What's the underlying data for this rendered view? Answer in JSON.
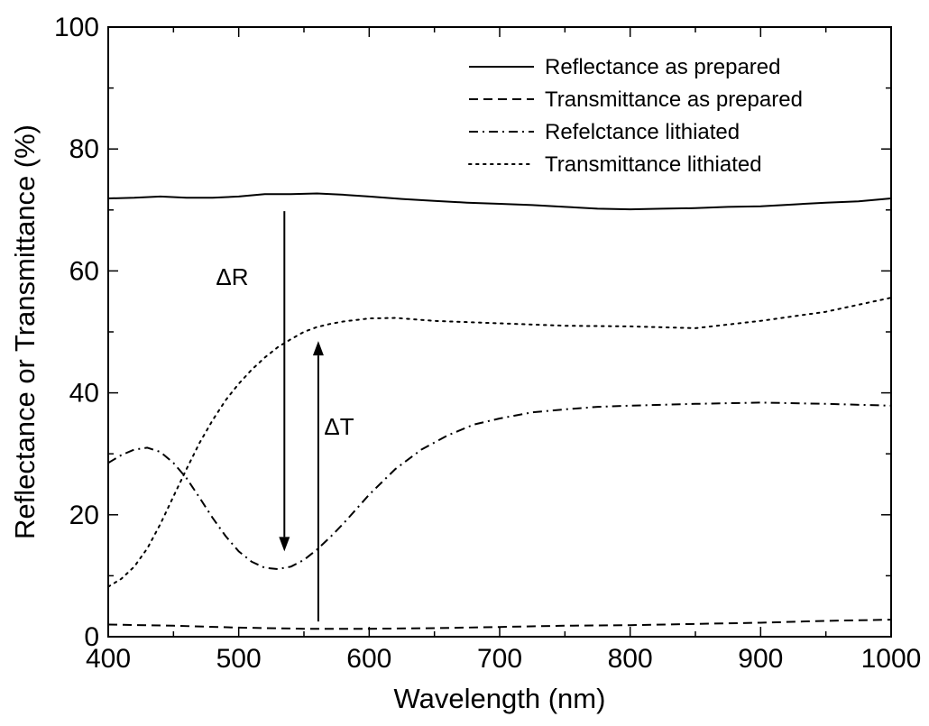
{
  "chart_data": {
    "type": "line",
    "title": "",
    "xlabel": "Wavelength (nm)",
    "ylabel": "Reflectance or Transmittance (%)",
    "xlim": [
      400,
      1000
    ],
    "ylim": [
      0,
      100
    ],
    "xticks": [
      400,
      500,
      600,
      700,
      800,
      900,
      1000
    ],
    "yticks": [
      0,
      20,
      40,
      60,
      80,
      100
    ],
    "grid": false,
    "legend_position": "top-right",
    "series": [
      {
        "name": "Reflectance as prepared",
        "style": "solid",
        "color": "#000000",
        "x": [
          400,
          420,
          440,
          460,
          480,
          500,
          520,
          540,
          560,
          580,
          600,
          625,
          650,
          675,
          700,
          725,
          750,
          775,
          800,
          825,
          850,
          875,
          900,
          925,
          950,
          975,
          1000
        ],
        "y": [
          71.9,
          72.0,
          72.2,
          72.0,
          72.0,
          72.2,
          72.6,
          72.6,
          72.7,
          72.5,
          72.2,
          71.8,
          71.5,
          71.2,
          71.0,
          70.8,
          70.5,
          70.2,
          70.1,
          70.2,
          70.3,
          70.5,
          70.6,
          70.9,
          71.2,
          71.4,
          71.9
        ]
      },
      {
        "name": "Transmittance as prepared",
        "style": "dashed",
        "color": "#000000",
        "x": [
          400,
          450,
          500,
          550,
          600,
          650,
          700,
          750,
          800,
          850,
          900,
          950,
          1000
        ],
        "y": [
          2.0,
          1.8,
          1.5,
          1.3,
          1.3,
          1.4,
          1.6,
          1.8,
          1.9,
          2.1,
          2.3,
          2.6,
          2.8
        ]
      },
      {
        "name": "Refelctance lithiated",
        "style": "dashdot",
        "color": "#000000",
        "x": [
          400,
          410,
          420,
          430,
          440,
          450,
          460,
          470,
          480,
          490,
          500,
          510,
          520,
          530,
          540,
          550,
          560,
          570,
          580,
          590,
          600,
          620,
          640,
          660,
          680,
          700,
          725,
          750,
          775,
          800,
          850,
          900,
          950,
          1000
        ],
        "y": [
          28.5,
          29.8,
          30.7,
          31.0,
          30.3,
          28.5,
          26.0,
          22.8,
          19.5,
          16.5,
          14.0,
          12.3,
          11.3,
          11.1,
          11.5,
          12.6,
          14.3,
          16.3,
          18.5,
          20.9,
          23.3,
          27.5,
          30.7,
          33.0,
          34.8,
          35.8,
          36.8,
          37.3,
          37.7,
          37.9,
          38.2,
          38.4,
          38.2,
          37.9
        ]
      },
      {
        "name": "Transmittance lithiated",
        "style": "dotted",
        "color": "#000000",
        "x": [
          400,
          410,
          420,
          430,
          440,
          450,
          460,
          470,
          480,
          490,
          500,
          510,
          520,
          530,
          540,
          550,
          560,
          570,
          580,
          600,
          620,
          650,
          700,
          750,
          800,
          850,
          900,
          950,
          1000
        ],
        "y": [
          8.2,
          9.5,
          11.5,
          14.5,
          18.5,
          23.0,
          27.5,
          31.8,
          35.5,
          38.8,
          41.5,
          43.8,
          45.8,
          47.5,
          48.8,
          50.0,
          50.8,
          51.3,
          51.7,
          52.2,
          52.3,
          51.8,
          51.4,
          51.0,
          50.9,
          50.6,
          51.8,
          53.3,
          55.6
        ]
      }
    ],
    "annotations": [
      {
        "label": "ΔR",
        "arrow_x": 535,
        "arrow_from_y": 69.8,
        "arrow_to_y": 14.0,
        "label_x": 495,
        "label_y": 59
      },
      {
        "label": "ΔT",
        "arrow_x": 561,
        "arrow_from_y": 2.5,
        "arrow_to_y": 48.5,
        "label_x": 577,
        "label_y": 34.5
      }
    ]
  }
}
